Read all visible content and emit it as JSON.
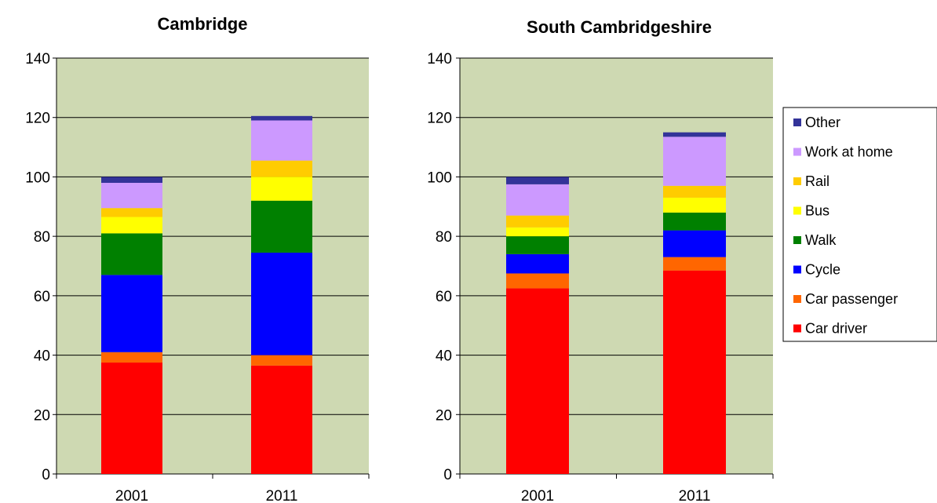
{
  "chart_data": [
    {
      "type": "bar",
      "stacked": true,
      "title": "Cambridge",
      "xlabel": "",
      "ylabel": "",
      "categories": [
        "2001",
        "2011"
      ],
      "ylim": [
        0,
        140
      ],
      "yticks": [
        0,
        20,
        40,
        60,
        80,
        100,
        120,
        140
      ],
      "grid": true,
      "series": [
        {
          "name": "Car driver",
          "values": [
            37.5,
            36.5
          ],
          "color": "#ff0000"
        },
        {
          "name": "Car passenger",
          "values": [
            3.5,
            3.5
          ],
          "color": "#ff6600"
        },
        {
          "name": "Cycle",
          "values": [
            26,
            34.5
          ],
          "color": "#0000ff"
        },
        {
          "name": "Walk",
          "values": [
            14,
            17.5
          ],
          "color": "#008000"
        },
        {
          "name": "Bus",
          "values": [
            5.5,
            8
          ],
          "color": "#ffff00"
        },
        {
          "name": "Rail",
          "values": [
            3,
            5.5
          ],
          "color": "#ffcc00"
        },
        {
          "name": "Work at home",
          "values": [
            8.5,
            13.5
          ],
          "color": "#cc99ff"
        },
        {
          "name": "Other",
          "values": [
            2,
            1.5
          ],
          "color": "#333399"
        }
      ]
    },
    {
      "type": "bar",
      "stacked": true,
      "title": "South Cambridgeshire",
      "xlabel": "",
      "ylabel": "",
      "categories": [
        "2001",
        "2011"
      ],
      "ylim": [
        0,
        140
      ],
      "yticks": [
        0,
        20,
        40,
        60,
        80,
        100,
        120,
        140
      ],
      "grid": true,
      "series": [
        {
          "name": "Car driver",
          "values": [
            62.5,
            68.5
          ],
          "color": "#ff0000"
        },
        {
          "name": "Car passenger",
          "values": [
            5,
            4.5
          ],
          "color": "#ff6600"
        },
        {
          "name": "Cycle",
          "values": [
            6.5,
            9
          ],
          "color": "#0000ff"
        },
        {
          "name": "Walk",
          "values": [
            6,
            6
          ],
          "color": "#008000"
        },
        {
          "name": "Bus",
          "values": [
            3,
            5
          ],
          "color": "#ffff00"
        },
        {
          "name": "Rail",
          "values": [
            4,
            4
          ],
          "color": "#ffcc00"
        },
        {
          "name": "Work at home",
          "values": [
            10.5,
            16.5
          ],
          "color": "#cc99ff"
        },
        {
          "name": "Other",
          "values": [
            2.5,
            1.5
          ],
          "color": "#333399"
        }
      ]
    }
  ],
  "legend": {
    "placement": "right",
    "items": [
      {
        "label": "Other",
        "color": "#333399"
      },
      {
        "label": "Work at home",
        "color": "#cc99ff"
      },
      {
        "label": "Rail",
        "color": "#ffcc00"
      },
      {
        "label": "Bus",
        "color": "#ffff00"
      },
      {
        "label": "Walk",
        "color": "#008000"
      },
      {
        "label": "Cycle",
        "color": "#0000ff"
      },
      {
        "label": "Car passenger",
        "color": "#ff6600"
      },
      {
        "label": "Car driver",
        "color": "#ff0000"
      }
    ]
  },
  "colors": {
    "plot_background": "#ced9b2",
    "gridline": "#000000"
  }
}
